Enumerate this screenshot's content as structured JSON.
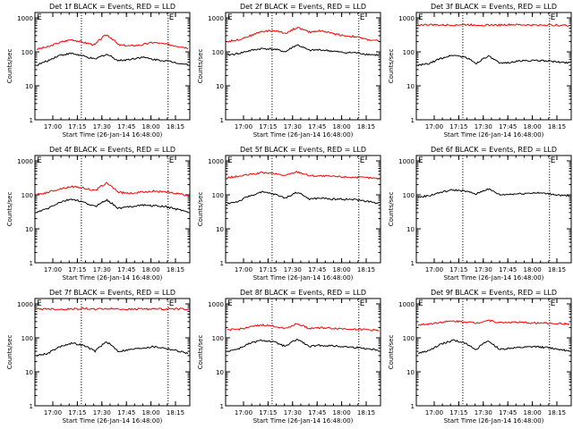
{
  "chart_data": [
    {
      "type": "line",
      "title": "Det 1f BLACK = Events, RED = LLD",
      "xlabel": "Start Time (26-Jan-14 16:48:00)",
      "ylabel": "Counts/sec",
      "xlim": [
        0,
        100
      ],
      "ylim": [
        1,
        1000
      ],
      "log_y": true,
      "xticks": [
        "17:00",
        "17:15",
        "17:30",
        "17:45",
        "18:00",
        "18:15"
      ],
      "yticks": [
        "1",
        "10",
        "100",
        "1000"
      ],
      "markers": [
        "E",
        "E"
      ],
      "series": [
        {
          "color": "#ff0000",
          "values": [
            120,
            140,
            190,
            230,
            190,
            160,
            320,
            160,
            150,
            160,
            190,
            170,
            150,
            130
          ]
        },
        {
          "color": "#000000",
          "values": [
            40,
            55,
            80,
            90,
            75,
            60,
            85,
            55,
            60,
            70,
            60,
            55,
            48,
            42
          ]
        }
      ]
    },
    {
      "type": "line",
      "title": "Det 2f BLACK = Events, RED = LLD",
      "xlabel": "Start Time (26-Jan-14 16:48:00)",
      "ylabel": "Counts/sec",
      "xlim": [
        0,
        100
      ],
      "ylim": [
        1,
        1000
      ],
      "log_y": true,
      "xticks": [
        "17:00",
        "17:15",
        "17:30",
        "17:45",
        "18:00",
        "18:15"
      ],
      "yticks": [
        "1",
        "10",
        "100",
        "1000"
      ],
      "markers": [
        "E",
        "E"
      ],
      "series": [
        {
          "color": "#ff0000",
          "values": [
            200,
            230,
            300,
            400,
            420,
            350,
            520,
            380,
            420,
            350,
            300,
            280,
            230,
            210
          ]
        },
        {
          "color": "#000000",
          "values": [
            80,
            90,
            110,
            125,
            120,
            100,
            160,
            110,
            115,
            105,
            95,
            95,
            85,
            80
          ]
        }
      ]
    },
    {
      "type": "line",
      "title": "Det 3f BLACK = Events, RED = LLD",
      "xlabel": "Start Time (26-Jan-14 16:48:00)",
      "ylabel": "Counts/sec",
      "xlim": [
        0,
        100
      ],
      "ylim": [
        1,
        1000
      ],
      "log_y": true,
      "xticks": [
        "17:00",
        "17:15",
        "17:30",
        "17:45",
        "18:00",
        "18:15"
      ],
      "yticks": [
        "1",
        "10",
        "100",
        "1000"
      ],
      "markers": [
        "E",
        "E"
      ],
      "series": [
        {
          "color": "#ff0000",
          "values": [
            620,
            630,
            610,
            620,
            630,
            620,
            610,
            620,
            630,
            620,
            610,
            620,
            610,
            600
          ]
        },
        {
          "color": "#000000",
          "values": [
            40,
            45,
            65,
            80,
            70,
            45,
            75,
            45,
            50,
            55,
            55,
            55,
            50,
            48
          ]
        }
      ]
    },
    {
      "type": "line",
      "title": "Det 4f BLACK = Events, RED = LLD",
      "xlabel": "Start Time (26-Jan-14 16:48:00)",
      "ylabel": "Counts/sec",
      "xlim": [
        0,
        100
      ],
      "ylim": [
        1,
        1000
      ],
      "log_y": true,
      "xticks": [
        "17:00",
        "17:15",
        "17:30",
        "17:45",
        "18:00",
        "18:15"
      ],
      "yticks": [
        "1",
        "10",
        "100",
        "1000"
      ],
      "markers": [
        "E",
        "E"
      ],
      "series": [
        {
          "color": "#ff0000",
          "values": [
            100,
            120,
            150,
            175,
            160,
            130,
            220,
            120,
            110,
            120,
            130,
            120,
            110,
            95
          ]
        },
        {
          "color": "#000000",
          "values": [
            30,
            40,
            60,
            75,
            60,
            45,
            70,
            40,
            45,
            50,
            48,
            45,
            38,
            32
          ]
        }
      ]
    },
    {
      "type": "line",
      "title": "Det 5f BLACK = Events, RED = LLD",
      "xlabel": "Start Time (26-Jan-14 16:48:00)",
      "ylabel": "Counts/sec",
      "xlim": [
        0,
        100
      ],
      "ylim": [
        1,
        1000
      ],
      "log_y": true,
      "xticks": [
        "17:00",
        "17:15",
        "17:30",
        "17:45",
        "18:00",
        "18:15"
      ],
      "yticks": [
        "1",
        "10",
        "100",
        "1000"
      ],
      "markers": [
        "E",
        "E"
      ],
      "series": [
        {
          "color": "#ff0000",
          "values": [
            320,
            350,
            400,
            450,
            420,
            370,
            480,
            370,
            360,
            350,
            340,
            330,
            320,
            300
          ]
        },
        {
          "color": "#000000",
          "values": [
            55,
            65,
            95,
            120,
            105,
            80,
            120,
            75,
            80,
            75,
            75,
            72,
            65,
            55
          ]
        }
      ]
    },
    {
      "type": "line",
      "title": "Det 6f BLACK = Events, RED = LLD",
      "xlabel": "Start Time (26-Jan-14 16:48:00)",
      "ylabel": "Counts/sec",
      "xlim": [
        0,
        100
      ],
      "ylim": [
        1,
        1000
      ],
      "log_y": true,
      "xticks": [
        "17:00",
        "17:15",
        "17:30",
        "17:45",
        "18:00",
        "18:15"
      ],
      "yticks": [
        "1",
        "10",
        "100",
        "1000"
      ],
      "markers": [
        "E",
        "E"
      ],
      "series": [
        {
          "color": "#000000",
          "values": [
            85,
            95,
            120,
            140,
            130,
            105,
            150,
            100,
            105,
            110,
            115,
            110,
            100,
            90
          ]
        }
      ]
    },
    {
      "type": "line",
      "title": "Det 7f BLACK = Events, RED = LLD",
      "xlabel": "Start Time (26-Jan-14 16:48:00)",
      "ylabel": "Counts/sec",
      "xlim": [
        0,
        100
      ],
      "ylim": [
        1,
        1000
      ],
      "log_y": true,
      "xticks": [
        "17:00",
        "17:15",
        "17:30",
        "17:45",
        "18:00",
        "18:15"
      ],
      "yticks": [
        "1",
        "10",
        "100",
        "1000"
      ],
      "markers": [
        "E",
        "E"
      ],
      "series": [
        {
          "color": "#ff0000",
          "values": [
            700,
            720,
            690,
            710,
            730,
            700,
            720,
            710,
            690,
            720,
            700,
            710,
            720,
            700
          ]
        },
        {
          "color": "#000000",
          "values": [
            30,
            35,
            55,
            70,
            60,
            40,
            75,
            40,
            45,
            50,
            55,
            50,
            42,
            35
          ]
        }
      ]
    },
    {
      "type": "line",
      "title": "Det 8f BLACK = Events, RED = LLD",
      "xlabel": "Start Time (26-Jan-14 16:48:00)",
      "ylabel": "Counts/sec",
      "xlim": [
        0,
        100
      ],
      "ylim": [
        1,
        1000
      ],
      "log_y": true,
      "xticks": [
        "17:00",
        "17:15",
        "17:30",
        "17:45",
        "18:00",
        "18:15"
      ],
      "yticks": [
        "1",
        "10",
        "100",
        "1000"
      ],
      "markers": [
        "E",
        "E"
      ],
      "series": [
        {
          "color": "#ff0000",
          "values": [
            170,
            180,
            210,
            240,
            220,
            190,
            260,
            190,
            200,
            190,
            185,
            180,
            175,
            165
          ]
        },
        {
          "color": "#000000",
          "values": [
            40,
            48,
            70,
            85,
            75,
            55,
            90,
            55,
            60,
            58,
            55,
            52,
            48,
            44
          ]
        }
      ]
    },
    {
      "type": "line",
      "title": "Det 9f BLACK = Events, RED = LLD",
      "xlabel": "Start Time (26-Jan-14 16:48:00)",
      "ylabel": "Counts/sec",
      "xlim": [
        0,
        100
      ],
      "ylim": [
        1,
        1000
      ],
      "log_y": true,
      "xticks": [
        "17:00",
        "17:15",
        "17:30",
        "17:45",
        "18:00",
        "18:15"
      ],
      "yticks": [
        "1",
        "10",
        "100",
        "1000"
      ],
      "markers": [
        "E",
        "E"
      ],
      "series": [
        {
          "color": "#ff0000",
          "values": [
            240,
            260,
            290,
            310,
            300,
            270,
            330,
            280,
            290,
            280,
            275,
            270,
            265,
            255
          ]
        },
        {
          "color": "#000000",
          "values": [
            35,
            42,
            65,
            85,
            70,
            45,
            80,
            45,
            50,
            52,
            55,
            52,
            47,
            40
          ]
        }
      ]
    }
  ]
}
